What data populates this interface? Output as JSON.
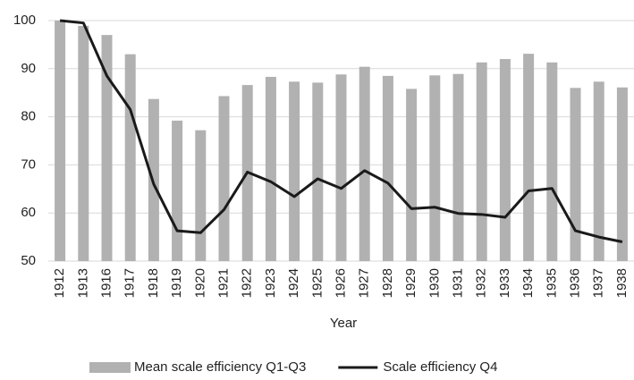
{
  "chart_data": {
    "type": "combo",
    "categories": [
      "1912",
      "1913",
      "1916",
      "1917",
      "1918",
      "1919",
      "1920",
      "1921",
      "1922",
      "1923",
      "1924",
      "1925",
      "1926",
      "1927",
      "1928",
      "1929",
      "1930",
      "1931",
      "1932",
      "1933",
      "1934",
      "1935",
      "1936",
      "1937",
      "1938"
    ],
    "series": [
      {
        "name": "Mean scale efficiency Q1-Q3",
        "type": "bar",
        "color": "#b1b1b1",
        "values": [
          100,
          98.9,
          97,
          93,
          83.7,
          79.2,
          77.2,
          84.3,
          86.6,
          88.3,
          87.3,
          87.1,
          88.8,
          90.4,
          88.5,
          85.8,
          88.6,
          88.9,
          91.3,
          92,
          93.1,
          91.3,
          86,
          87.3,
          86.1
        ]
      },
      {
        "name": "Scale efficiency Q4",
        "type": "line",
        "color": "#1a1a1a",
        "values": [
          100,
          99.5,
          88.5,
          81.5,
          66,
          56.3,
          55.9,
          60.7,
          68.5,
          66.5,
          63.4,
          67.1,
          65.1,
          68.8,
          66.2,
          60.9,
          61.2,
          59.9,
          59.7,
          59.1,
          64.6,
          65.1,
          56.3,
          55,
          54
        ]
      }
    ],
    "x_label": "Year",
    "ylim": [
      50,
      100
    ],
    "yticks": [
      50,
      60,
      70,
      80,
      90,
      100
    ],
    "grid": true,
    "legend": "bottom"
  }
}
